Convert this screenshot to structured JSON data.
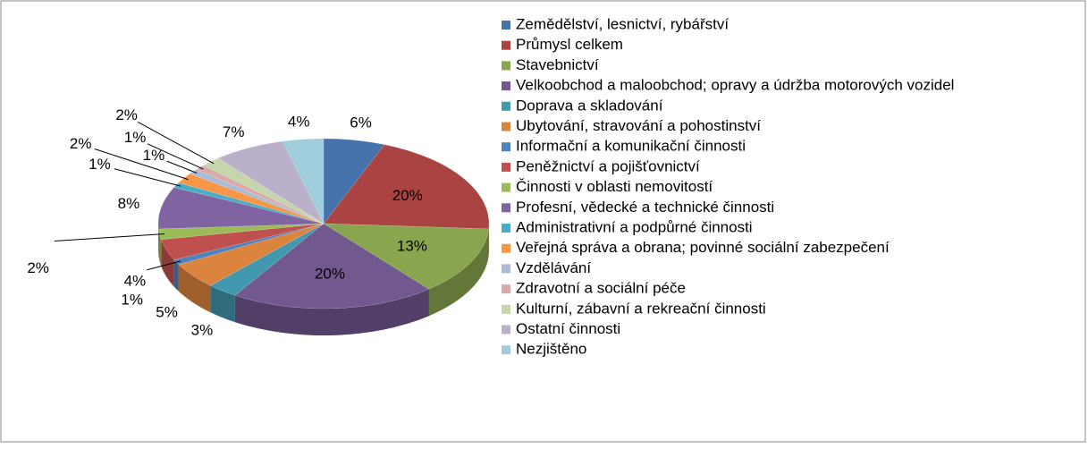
{
  "chart_data": {
    "type": "pie",
    "categories": [
      "Zemědělství, lesnictví, rybářství",
      "Průmysl celkem",
      "Stavebnictví",
      "Velkoobchod a maloobchod; opravy a údržba motorových vozidel",
      "Doprava a skladování",
      "Ubytování, stravování a pohostinství",
      "Informační a komunikační činnosti",
      "Peněžnictví a pojišťovnictví",
      "Činnosti v oblasti nemovitostí",
      "Profesní, vědecké a technické činnosti",
      "Administrativní a podpůrné činnosti",
      "Veřejná správa a obrana; povinné sociální zabezpečení",
      "Vzdělávání",
      "Zdravotní a sociální péče",
      "Kulturní, zábavní a rekreační činnosti",
      "Ostatní činnosti",
      "Nezjištěno"
    ],
    "values": [
      6,
      20,
      13,
      20,
      3,
      5,
      1,
      4,
      2,
      8,
      1,
      2,
      1,
      1,
      2,
      7,
      4
    ],
    "value_labels": [
      "6%",
      "20%",
      "13%",
      "20%",
      "3%",
      "5%",
      "1%",
      "4%",
      "2%",
      "8%",
      "1%",
      "2%",
      "1%",
      "1%",
      "2%",
      "7%",
      "4%"
    ],
    "colors": [
      "#4672ab",
      "#a94442",
      "#89a54e",
      "#71588f",
      "#4198af",
      "#db843d",
      "#4f81bd",
      "#c0504d",
      "#9bbb59",
      "#8064a2",
      "#4bacc6",
      "#f79646",
      "#aabad7",
      "#d9aaa9",
      "#c6d6ac",
      "#bab0c9",
      "#9fcddc"
    ],
    "legend": "right"
  }
}
